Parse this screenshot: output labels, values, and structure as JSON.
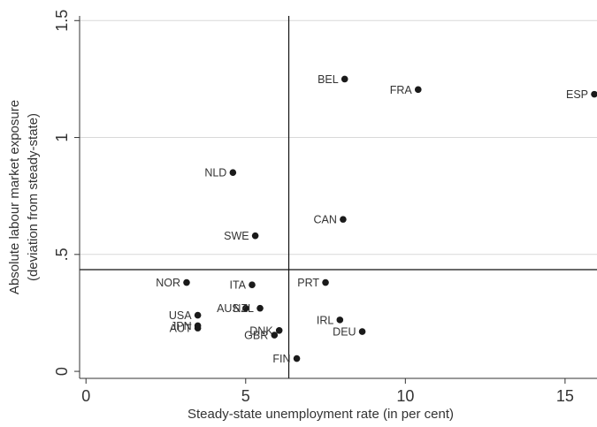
{
  "chart_data": {
    "type": "scatter",
    "title": "",
    "xlabel": "Steady-state unemployment rate (in per cent)",
    "ylabel_lines": [
      "Absolute labour market exposure",
      "(deviation from steady-state)"
    ],
    "xlim": [
      -0.2,
      16
    ],
    "ylim": [
      -0.03,
      1.52
    ],
    "x_ticks": [
      0,
      5,
      10,
      15
    ],
    "x_tick_labels": [
      "0",
      "5",
      "10",
      "15"
    ],
    "y_ticks": [
      0,
      0.5,
      1,
      1.5
    ],
    "y_tick_labels": [
      "0",
      ".5",
      "1",
      "1.5"
    ],
    "grid": "horizontal",
    "reference_lines": {
      "x": 6.35,
      "y": 0.435
    },
    "points": [
      {
        "label": "BEL",
        "x": 8.1,
        "y": 1.25,
        "label_side": "left"
      },
      {
        "label": "FRA",
        "x": 10.4,
        "y": 1.205,
        "label_side": "left"
      },
      {
        "label": "ESP",
        "x": 16.0,
        "y": 1.185,
        "label_side": "left"
      },
      {
        "label": "NLD",
        "x": 4.6,
        "y": 0.85,
        "label_side": "left"
      },
      {
        "label": "CAN",
        "x": 8.05,
        "y": 0.65,
        "label_side": "left"
      },
      {
        "label": "SWE",
        "x": 5.3,
        "y": 0.58,
        "label_side": "left"
      },
      {
        "label": "NOR",
        "x": 3.15,
        "y": 0.38,
        "label_side": "left"
      },
      {
        "label": "ITA",
        "x": 5.2,
        "y": 0.37,
        "label_side": "left"
      },
      {
        "label": "PRT",
        "x": 7.5,
        "y": 0.38,
        "label_side": "left"
      },
      {
        "label": "AUS",
        "x": 5.0,
        "y": 0.27,
        "label_side": "left"
      },
      {
        "label": "NZL",
        "x": 5.45,
        "y": 0.27,
        "label_side": "left"
      },
      {
        "label": "USA",
        "x": 3.5,
        "y": 0.24,
        "label_side": "left"
      },
      {
        "label": "JPN",
        "x": 3.5,
        "y": 0.195,
        "label_side": "left"
      },
      {
        "label": "AUT",
        "x": 3.5,
        "y": 0.185,
        "label_side": "left"
      },
      {
        "label": "IRL",
        "x": 7.95,
        "y": 0.22,
        "label_side": "left"
      },
      {
        "label": "DEU",
        "x": 8.65,
        "y": 0.17,
        "label_side": "left"
      },
      {
        "label": "DNK",
        "x": 6.05,
        "y": 0.175,
        "label_side": "left"
      },
      {
        "label": "GBR",
        "x": 5.9,
        "y": 0.155,
        "label_side": "left"
      },
      {
        "label": "FIN",
        "x": 6.6,
        "y": 0.055,
        "label_side": "left"
      }
    ]
  }
}
